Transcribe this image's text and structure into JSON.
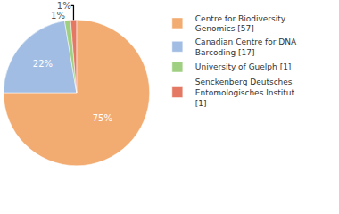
{
  "chart_data": {
    "type": "pie",
    "categories": [
      "Centre for Biodiversity Genomics [57]",
      "Canadian Centre for DNA Barcoding [17]",
      "University of Guelph [1]",
      "Senckenberg Deutsches Entomologisches Institut [1]"
    ],
    "values": [
      57,
      17,
      1,
      1
    ],
    "value_labels": [
      "75%",
      "22%",
      "1%",
      "1%"
    ],
    "data_labels": true,
    "colors": [
      "#f2ac72",
      "#a1bde3",
      "#9fcf80",
      "#e47862"
    ],
    "legend": "right"
  }
}
